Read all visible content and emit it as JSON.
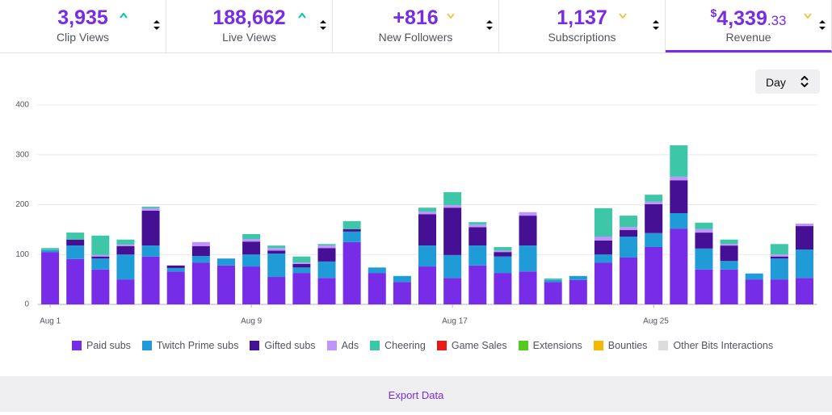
{
  "tabs": [
    {
      "value": "3,935",
      "label": "Clip Views",
      "trend": "up"
    },
    {
      "value": "188,662",
      "label": "Live Views",
      "trend": "up"
    },
    {
      "value": "+816",
      "label": "New Followers",
      "trend": "down"
    },
    {
      "value": "1,137",
      "label": "Subscriptions",
      "trend": "down"
    },
    {
      "value_prefix": "$",
      "value": "4,339",
      "value_suffix": ".33",
      "label": "Revenue",
      "trend": "down",
      "active": true
    }
  ],
  "interval_select": "Day",
  "export_label": "Export Data",
  "chart_data": {
    "type": "stacked-bar",
    "categories": [
      "Aug 1",
      null,
      null,
      null,
      null,
      null,
      null,
      null,
      "Aug 9",
      null,
      null,
      null,
      null,
      null,
      null,
      null,
      "Aug 17",
      null,
      null,
      null,
      null,
      null,
      null,
      null,
      "Aug 25",
      null,
      null,
      null,
      null,
      null,
      null
    ],
    "ylim": [
      0,
      400
    ],
    "yticks": [
      0,
      100,
      200,
      300,
      400
    ],
    "grid": true,
    "series": [
      {
        "name": "Paid subs",
        "color": "#772ce8",
        "values": [
          105,
          91,
          70,
          50,
          96,
          66,
          84,
          78,
          76,
          55,
          63,
          53,
          125,
          63,
          45,
          76,
          53,
          78,
          63,
          66,
          45,
          49,
          84,
          94,
          115,
          152,
          70,
          70,
          50,
          50,
          53
        ]
      },
      {
        "name": "Twitch Prime subs",
        "color": "#1f9bd7",
        "values": [
          4,
          27,
          22,
          50,
          22,
          7,
          13,
          14,
          24,
          47,
          11,
          33,
          21,
          11,
          12,
          42,
          46,
          40,
          33,
          52,
          4,
          8,
          16,
          42,
          28,
          31,
          42,
          17,
          12,
          42,
          57
        ]
      },
      {
        "name": "Gifted subs",
        "color": "#451093",
        "values": [
          0,
          12,
          4,
          17,
          70,
          5,
          20,
          0,
          26,
          6,
          7,
          27,
          5,
          0,
          0,
          63,
          95,
          37,
          9,
          60,
          0,
          0,
          28,
          13,
          58,
          66,
          32,
          31,
          0,
          4,
          47
        ]
      },
      {
        "name": "Ads",
        "color": "#bf94ff",
        "values": [
          0,
          0,
          3,
          3,
          5,
          0,
          8,
          0,
          5,
          5,
          3,
          5,
          0,
          0,
          0,
          5,
          5,
          5,
          3,
          7,
          0,
          0,
          8,
          6,
          5,
          7,
          7,
          3,
          0,
          4,
          5
        ]
      },
      {
        "name": "Cheering",
        "color": "#3ec6a8",
        "values": [
          4,
          14,
          39,
          10,
          3,
          0,
          0,
          0,
          10,
          5,
          12,
          3,
          16,
          0,
          0,
          8,
          26,
          5,
          7,
          0,
          3,
          0,
          57,
          23,
          14,
          63,
          13,
          9,
          0,
          21,
          0
        ]
      },
      {
        "name": "Game Sales",
        "color": "#e91916",
        "values": [
          0,
          0,
          0,
          0,
          0,
          0,
          0,
          0,
          0,
          0,
          0,
          0,
          0,
          0,
          0,
          0,
          0,
          0,
          0,
          0,
          0,
          0,
          0,
          0,
          0,
          0,
          0,
          0,
          0,
          0,
          0
        ]
      },
      {
        "name": "Extensions",
        "color": "#57cb1d",
        "values": [
          0,
          0,
          0,
          0,
          0,
          0,
          0,
          0,
          0,
          0,
          0,
          0,
          0,
          0,
          0,
          0,
          0,
          0,
          0,
          0,
          0,
          0,
          0,
          0,
          0,
          0,
          0,
          0,
          0,
          0,
          0
        ]
      },
      {
        "name": "Bounties",
        "color": "#f5b800",
        "values": [
          0,
          0,
          0,
          0,
          0,
          0,
          0,
          0,
          0,
          0,
          0,
          0,
          0,
          0,
          0,
          0,
          0,
          0,
          0,
          0,
          0,
          0,
          0,
          0,
          0,
          0,
          0,
          0,
          0,
          0,
          0
        ]
      },
      {
        "name": "Other Bits Interactions",
        "color": "#dcdcdc",
        "values": [
          0,
          0,
          0,
          0,
          0,
          0,
          0,
          0,
          0,
          0,
          0,
          0,
          0,
          0,
          0,
          0,
          0,
          0,
          0,
          0,
          0,
          0,
          0,
          0,
          0,
          0,
          0,
          0,
          0,
          0,
          0
        ]
      }
    ]
  }
}
